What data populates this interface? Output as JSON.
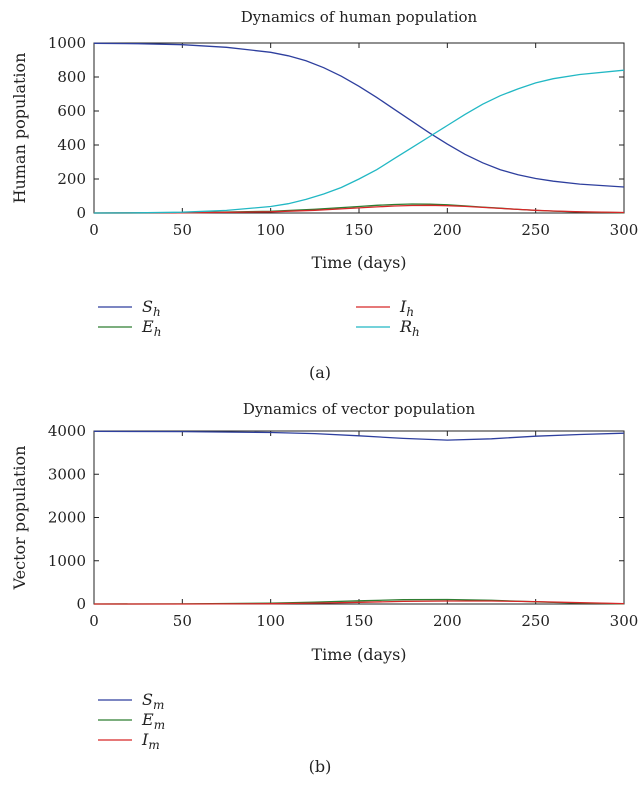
{
  "chart_data": [
    {
      "type": "line",
      "panel_label": "(a)",
      "title": "Dynamics of human population",
      "xlabel": "Time (days)",
      "ylabel": "Human population",
      "xlim": [
        0,
        300
      ],
      "ylim": [
        0,
        1000
      ],
      "xticks": [
        "0",
        "50",
        "100",
        "150",
        "200",
        "250",
        "300"
      ],
      "yticks": [
        "0",
        "200",
        "400",
        "600",
        "800",
        "1000"
      ],
      "grid": false,
      "legend_position": "below",
      "series": [
        {
          "name": "S",
          "sub": "h",
          "color": "#2e3f9e",
          "x": [
            0,
            25,
            50,
            75,
            100,
            110,
            120,
            130,
            140,
            150,
            160,
            170,
            180,
            190,
            200,
            210,
            220,
            230,
            240,
            250,
            260,
            275,
            300
          ],
          "y": [
            998,
            996,
            990,
            975,
            945,
            925,
            895,
            855,
            805,
            745,
            680,
            610,
            540,
            470,
            405,
            345,
            295,
            255,
            225,
            203,
            187,
            170,
            153
          ]
        },
        {
          "name": "E",
          "sub": "h",
          "color": "#2e7d32",
          "x": [
            0,
            50,
            100,
            125,
            150,
            160,
            170,
            180,
            190,
            200,
            210,
            220,
            230,
            240,
            250,
            260,
            275,
            300
          ],
          "y": [
            0,
            1,
            10,
            22,
            38,
            45,
            50,
            53,
            52,
            48,
            42,
            35,
            28,
            21,
            15,
            11,
            6,
            2
          ]
        },
        {
          "name": "I",
          "sub": "h",
          "color": "#d62728",
          "x": [
            0,
            50,
            100,
            125,
            150,
            160,
            170,
            180,
            190,
            200,
            210,
            220,
            230,
            240,
            250,
            260,
            275,
            300
          ],
          "y": [
            0,
            1,
            7,
            16,
            30,
            36,
            41,
            44,
            45,
            43,
            39,
            33,
            27,
            21,
            16,
            12,
            7,
            3
          ]
        },
        {
          "name": "R",
          "sub": "h",
          "color": "#22b8c4",
          "x": [
            0,
            25,
            50,
            75,
            100,
            110,
            120,
            130,
            140,
            150,
            160,
            170,
            180,
            190,
            200,
            210,
            220,
            230,
            240,
            250,
            260,
            275,
            300
          ],
          "y": [
            0,
            1,
            5,
            15,
            38,
            55,
            80,
            112,
            150,
            200,
            255,
            320,
            385,
            450,
            515,
            580,
            640,
            690,
            730,
            765,
            790,
            815,
            840
          ]
        }
      ]
    },
    {
      "type": "line",
      "panel_label": "(b)",
      "title": "Dynamics of vector population",
      "xlabel": "Time (days)",
      "ylabel": "Vector population",
      "xlim": [
        0,
        300
      ],
      "ylim": [
        0,
        4000
      ],
      "xticks": [
        "0",
        "50",
        "100",
        "150",
        "200",
        "250",
        "300"
      ],
      "yticks": [
        "0",
        "1000",
        "2000",
        "3000",
        "4000"
      ],
      "grid": false,
      "legend_position": "below",
      "series": [
        {
          "name": "S",
          "sub": "m",
          "color": "#2e3f9e",
          "x": [
            0,
            50,
            100,
            125,
            150,
            175,
            200,
            225,
            250,
            275,
            300
          ],
          "y": [
            3990,
            3985,
            3965,
            3940,
            3890,
            3830,
            3790,
            3820,
            3880,
            3920,
            3950
          ]
        },
        {
          "name": "E",
          "sub": "m",
          "color": "#2e7d32",
          "x": [
            0,
            50,
            100,
            125,
            150,
            175,
            200,
            225,
            250,
            275,
            300
          ],
          "y": [
            0,
            3,
            20,
            45,
            75,
            100,
            105,
            85,
            50,
            20,
            5
          ]
        },
        {
          "name": "I",
          "sub": "m",
          "color": "#d62728",
          "x": [
            0,
            50,
            100,
            125,
            150,
            175,
            200,
            225,
            250,
            275,
            300
          ],
          "y": [
            0,
            1,
            8,
            20,
            40,
            60,
            70,
            70,
            55,
            30,
            10
          ]
        }
      ]
    }
  ]
}
